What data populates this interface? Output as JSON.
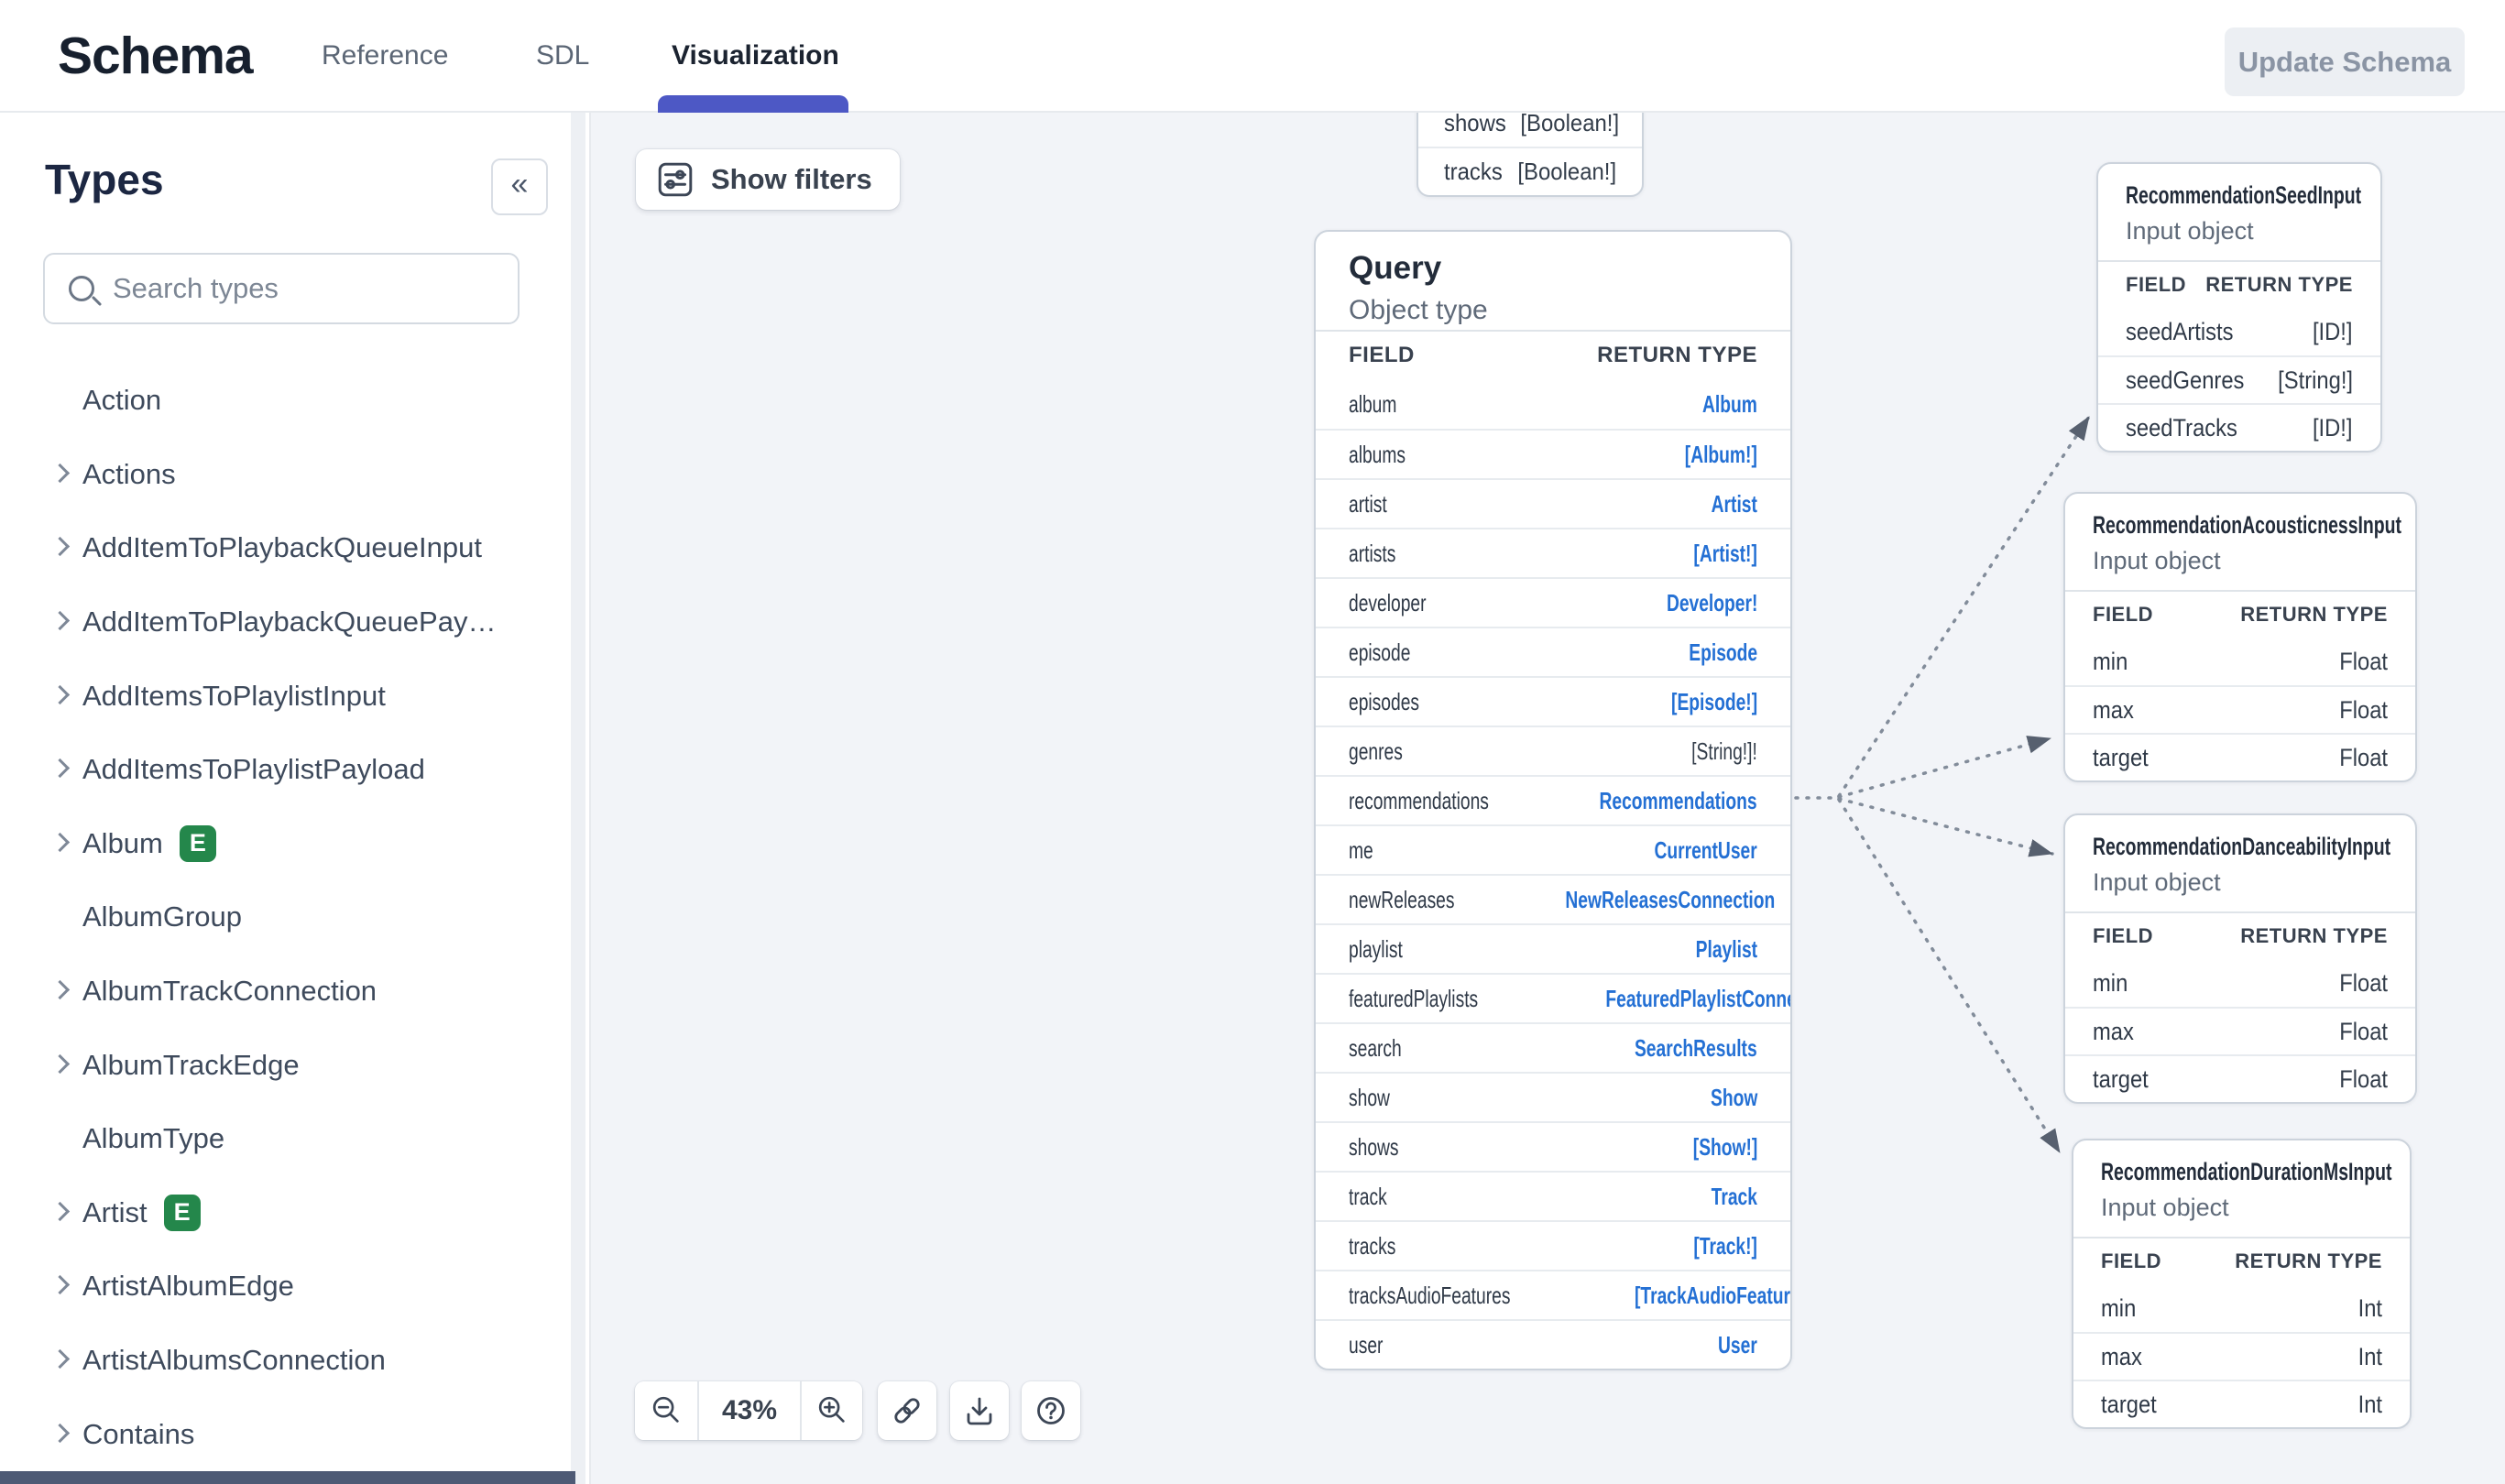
{
  "theme": {
    "link": "#2470d4",
    "scalar": "#333d4a",
    "accent": "#4d58c5",
    "badge": "#24874b",
    "canvas_bg": "#f2f4f8",
    "edge": "#828c9a",
    "arrow": "#57606f"
  },
  "header": {
    "title": "Schema",
    "tabs": [
      {
        "id": "reference",
        "label": "Reference",
        "active": false
      },
      {
        "id": "sdl",
        "label": "SDL",
        "active": false
      },
      {
        "id": "visualization",
        "label": "Visualization",
        "active": true
      }
    ],
    "update_button_label": "Update Schema"
  },
  "sidebar": {
    "heading": "Types",
    "collapse_glyph": "«",
    "search_placeholder": "Search types",
    "items": [
      {
        "label": "Action",
        "expandable": false,
        "badge": ""
      },
      {
        "label": "Actions",
        "expandable": true,
        "badge": ""
      },
      {
        "label": "AddItemToPlaybackQueueInput",
        "expandable": true,
        "badge": ""
      },
      {
        "label": "AddItemToPlaybackQueuePay…",
        "expandable": true,
        "badge": ""
      },
      {
        "label": "AddItemsToPlaylistInput",
        "expandable": true,
        "badge": ""
      },
      {
        "label": "AddItemsToPlaylistPayload",
        "expandable": true,
        "badge": ""
      },
      {
        "label": "Album",
        "expandable": true,
        "badge": "E"
      },
      {
        "label": "AlbumGroup",
        "expandable": false,
        "badge": ""
      },
      {
        "label": "AlbumTrackConnection",
        "expandable": true,
        "badge": ""
      },
      {
        "label": "AlbumTrackEdge",
        "expandable": true,
        "badge": ""
      },
      {
        "label": "AlbumType",
        "expandable": false,
        "badge": ""
      },
      {
        "label": "Artist",
        "expandable": true,
        "badge": "E"
      },
      {
        "label": "ArtistAlbumEdge",
        "expandable": true,
        "badge": ""
      },
      {
        "label": "ArtistAlbumsConnection",
        "expandable": true,
        "badge": ""
      },
      {
        "label": "Contains",
        "expandable": true,
        "badge": ""
      }
    ]
  },
  "canvas": {
    "show_filters_label": "Show filters",
    "toolbar": {
      "zoom_label": "43%"
    },
    "nodes": [
      {
        "id": "partial",
        "rows": [
          {
            "field": "shows",
            "type": "[Boolean!]",
            "link": false
          },
          {
            "field": "tracks",
            "type": "[Boolean!]",
            "link": false
          }
        ]
      },
      {
        "id": "query",
        "title": "Query",
        "kind": "Object type",
        "columns": {
          "field": "FIELD",
          "type": "RETURN TYPE"
        },
        "rows": [
          {
            "field": "album",
            "type": "Album",
            "link": true
          },
          {
            "field": "albums",
            "type": "[Album!]",
            "link": true
          },
          {
            "field": "artist",
            "type": "Artist",
            "link": true
          },
          {
            "field": "artists",
            "type": "[Artist!]",
            "link": true
          },
          {
            "field": "developer",
            "type": "Developer!",
            "link": true
          },
          {
            "field": "episode",
            "type": "Episode",
            "link": true
          },
          {
            "field": "episodes",
            "type": "[Episode!]",
            "link": true
          },
          {
            "field": "genres",
            "type": "[String!]!",
            "link": false
          },
          {
            "field": "recommendations",
            "type": "Recommendations",
            "link": true
          },
          {
            "field": "me",
            "type": "CurrentUser",
            "link": true
          },
          {
            "field": "newReleases",
            "type": "NewReleasesConnection",
            "link": true
          },
          {
            "field": "playlist",
            "type": "Playlist",
            "link": true
          },
          {
            "field": "featuredPlaylists",
            "type": "FeaturedPlaylistConnection",
            "link": true
          },
          {
            "field": "search",
            "type": "SearchResults",
            "link": true
          },
          {
            "field": "show",
            "type": "Show",
            "link": true
          },
          {
            "field": "shows",
            "type": "[Show!]",
            "link": true
          },
          {
            "field": "track",
            "type": "Track",
            "link": true
          },
          {
            "field": "tracks",
            "type": "[Track!]",
            "link": true
          },
          {
            "field": "tracksAudioFeatures",
            "type": "[TrackAudioFeatures!]!",
            "link": true
          },
          {
            "field": "user",
            "type": "User",
            "link": true
          }
        ]
      },
      {
        "id": "seed",
        "title": "RecommendationSeedInput",
        "kind": "Input object",
        "columns": {
          "field": "FIELD",
          "type": "RETURN TYPE"
        },
        "rows": [
          {
            "field": "seedArtists",
            "type": "[ID!]",
            "link": false
          },
          {
            "field": "seedGenres",
            "type": "[String!]",
            "link": false
          },
          {
            "field": "seedTracks",
            "type": "[ID!]",
            "link": false
          }
        ]
      },
      {
        "id": "acousticness",
        "title": "RecommendationAcousticnessInput",
        "kind": "Input object",
        "columns": {
          "field": "FIELD",
          "type": "RETURN TYPE"
        },
        "rows": [
          {
            "field": "min",
            "type": "Float",
            "link": false
          },
          {
            "field": "max",
            "type": "Float",
            "link": false
          },
          {
            "field": "target",
            "type": "Float",
            "link": false
          }
        ]
      },
      {
        "id": "danceability",
        "title": "RecommendationDanceabilityInput",
        "kind": "Input object",
        "columns": {
          "field": "FIELD",
          "type": "RETURN TYPE"
        },
        "rows": [
          {
            "field": "min",
            "type": "Float",
            "link": false
          },
          {
            "field": "max",
            "type": "Float",
            "link": false
          },
          {
            "field": "target",
            "type": "Float",
            "link": false
          }
        ]
      },
      {
        "id": "durationms",
        "title": "RecommendationDurationMsInput",
        "kind": "Input object",
        "columns": {
          "field": "FIELD",
          "type": "RETURN TYPE"
        },
        "rows": [
          {
            "field": "min",
            "type": "Int",
            "link": false
          },
          {
            "field": "max",
            "type": "Int",
            "link": false
          },
          {
            "field": "target",
            "type": "Int",
            "link": false
          }
        ]
      }
    ]
  }
}
